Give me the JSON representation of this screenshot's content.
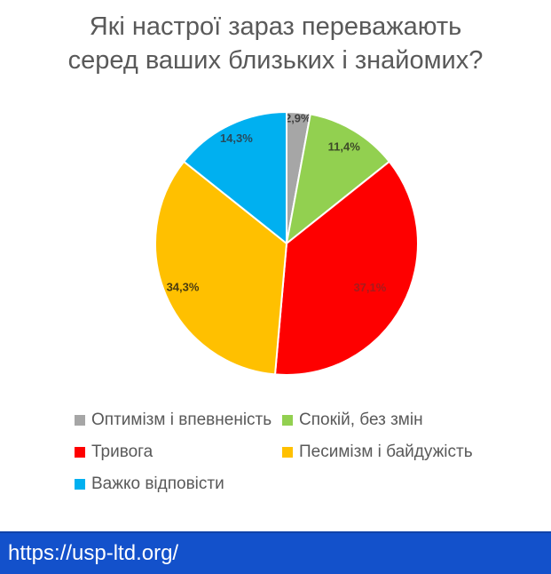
{
  "title": {
    "line1": "Які настрої зараз переважають",
    "line2": "серед ваших близьких і знайомих?"
  },
  "chart_data": {
    "type": "pie",
    "title": "Які настрої зараз переважають серед ваших близьких і знайомих?",
    "direction": "clockwise",
    "start_angle_deg": 0,
    "legend_position": "bottom",
    "slices": [
      {
        "label": "Оптимізм і впевненість",
        "value": 2.9,
        "value_label": "2,9%",
        "color": "#a6a6a6",
        "value_label_color": "#404040"
      },
      {
        "label": "Спокій, без змін",
        "value": 11.4,
        "value_label": "11,4%",
        "color": "#92d050",
        "value_label_color": "#3d4a28"
      },
      {
        "label": "Тривога",
        "value": 37.1,
        "value_label": "37,1%",
        "color": "#fe0000",
        "value_label_color": "#a61c1c"
      },
      {
        "label": "Песимізм і байдужість",
        "value": 34.3,
        "value_label": "34,3%",
        "color": "#ffc000",
        "value_label_color": "#4a3c10"
      },
      {
        "label": "Важко відповісти",
        "value": 14.3,
        "value_label": "14,3%",
        "color": "#00b0f0",
        "value_label_color": "#274a5c"
      }
    ]
  },
  "footer": {
    "url": "https://usp-ltd.org/",
    "background": "#1351cb",
    "text_color": "#ffffff"
  }
}
